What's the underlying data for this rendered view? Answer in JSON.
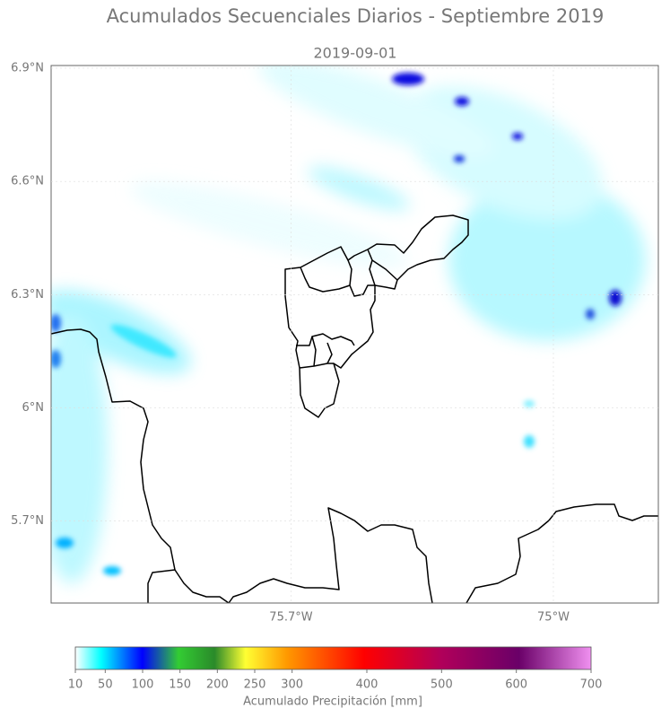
{
  "title": "Acumulados Secuenciales Diarios - Septiembre 2019",
  "subtitle": "2019-09-01",
  "map": {
    "xlim": [
      -76.34,
      -74.72
    ],
    "ylim": [
      5.483,
      6.907
    ],
    "xticks": [
      {
        "value": -75.7,
        "label": "75.7°W"
      },
      {
        "value": -75,
        "label": "75°W"
      }
    ],
    "yticks": [
      {
        "value": 6.9,
        "label": "6.9°N"
      },
      {
        "value": 6.6,
        "label": "6.6°N"
      },
      {
        "value": 6.3,
        "label": "6.3°N"
      },
      {
        "value": 6,
        "label": "6°N"
      },
      {
        "value": 5.7,
        "label": "5.7°N"
      }
    ],
    "grid": true
  },
  "colorbar": {
    "label": "Acumulado Precipitación [mm]",
    "lim": [
      10,
      700
    ],
    "ticks": [
      10,
      50,
      100,
      150,
      200,
      250,
      300,
      400,
      500,
      600,
      700
    ]
  }
}
